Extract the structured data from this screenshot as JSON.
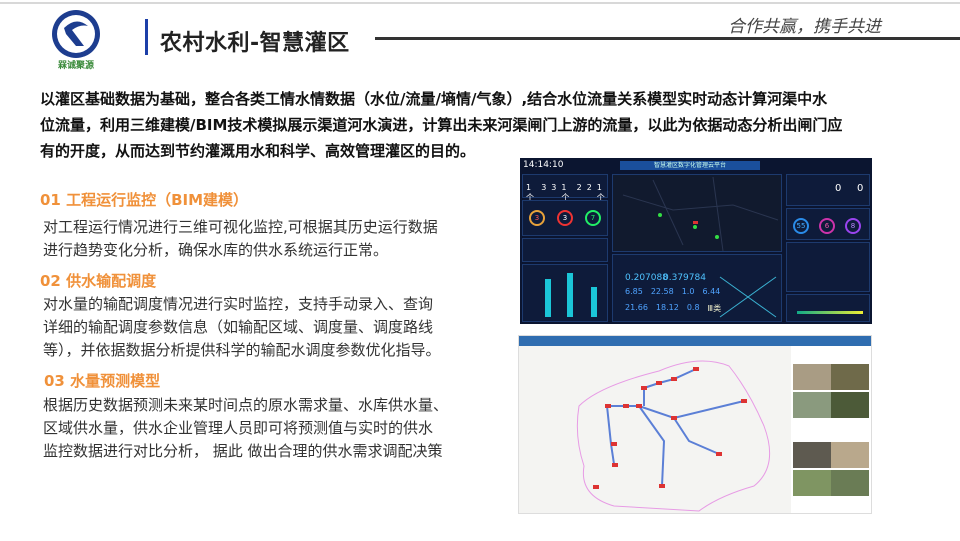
{
  "header": {
    "logo_text": "槑诚聚源",
    "title": "农村水利-智慧灌区",
    "slogan": "合作共赢，携手共进"
  },
  "intro": [
    "以灌区基础数据为基础，整合各类工情水情数据（水位/流量/墒情/气象）,结合水位流量关系模型实时动态计算河渠中水",
    "位流量，利用三维建模/BIM技术模拟展示渠道河水演进，计算出未来河渠闸门上游的流量，以此为依据动态分析出闸门应",
    "有的开度，从而达到节约灌溉用水和科学、高效管理灌区的目的。"
  ],
  "sections": [
    {
      "heading": "01 工程运行监控（BIM建模）",
      "lines": [
        "对工程运行情况进行三维可视化监控,可根据其历史运行数据",
        "进行趋势变化分析，确保水库的供水系统运行正常。"
      ]
    },
    {
      "heading": "02 供水输配调度",
      "lines": [
        "对水量的输配调度情况进行实时监控，支持手动录入、查询",
        "详细的输配调度参数信息（如输配区域、调度量、调度路线",
        "等），并依据数据分析提供科学的输配水调度参数优化指导。"
      ]
    },
    {
      "heading": "03 水量预测模型",
      "lines": [
        "根据历史数据预测未来某时间点的原水需求量、水库供水量、",
        "区域供水量，供水企业管理人员即可将预测值与实时的供水",
        "监控数据进行对比分析， 据此 做出合理的供水需求调配决策"
      ]
    }
  ],
  "dashboard": {
    "time": "14:14:10",
    "header": "智慧灌区数字化管理云平台",
    "counts": [
      "1个",
      "3",
      "3",
      "1个",
      "2",
      "2",
      "1个"
    ],
    "gauges": [
      "3",
      "3",
      "7"
    ],
    "values": [
      "0.207088",
      "0.379784"
    ],
    "stats": [
      "6.85",
      "22.58",
      "1.0",
      "6.44",
      "21.66",
      "18.12",
      "0.8",
      "Ⅲ类"
    ],
    "right_counts": [
      "0",
      "0"
    ],
    "rings": [
      "55",
      "6",
      "8"
    ]
  },
  "colors": {
    "accent": "#f0913a",
    "title_bar": "#1c3fa8",
    "dash_bg": "#0b1530",
    "map_bar": "#2f6db0"
  }
}
